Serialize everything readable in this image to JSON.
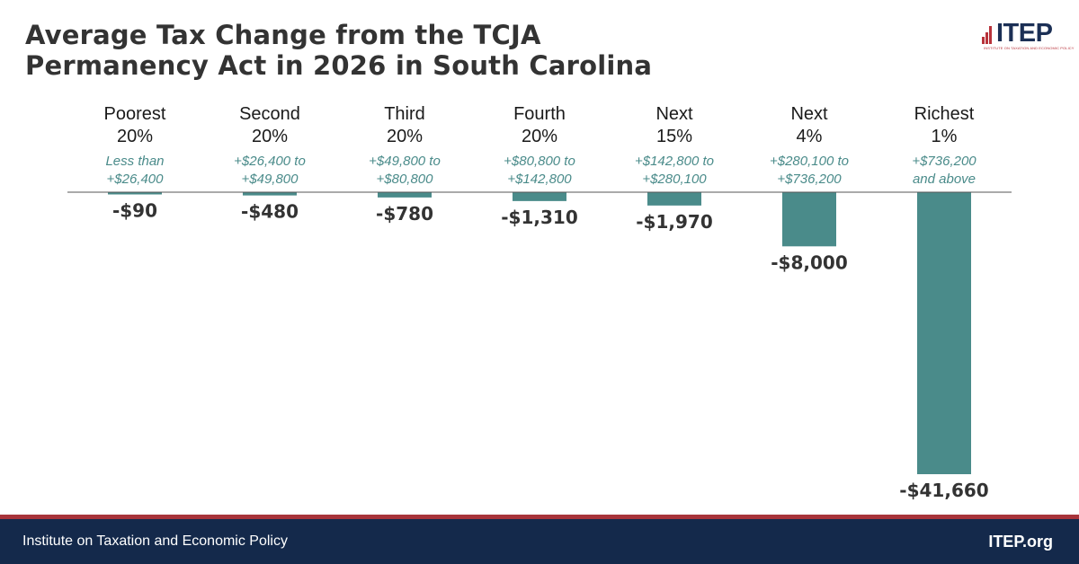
{
  "title_lines": [
    "Average Tax Change from the TCJA",
    "Permanency Act in 2026 in South Carolina"
  ],
  "logo": {
    "text": "ITEP",
    "subtext": "INSTITUTE ON TAXATION AND ECONOMIC POLICY"
  },
  "colors": {
    "bar": "#4a8b8a",
    "range_text": "#4a8b8a",
    "title": "#333333",
    "footer_bg": "#14294b",
    "footer_line": "#a8343a",
    "logo_red": "#b8323a",
    "logo_navy": "#1b2f55"
  },
  "chart_data": {
    "type": "bar",
    "categories": [
      {
        "label": [
          "Poorest",
          "20%"
        ],
        "range": [
          "Less than",
          "+$26,400"
        ]
      },
      {
        "label": [
          "Second",
          "20%"
        ],
        "range": [
          "+$26,400 to",
          "+$49,800"
        ]
      },
      {
        "label": [
          "Third",
          "20%"
        ],
        "range": [
          "+$49,800 to",
          "+$80,800"
        ]
      },
      {
        "label": [
          "Fourth",
          "20%"
        ],
        "range": [
          "+$80,800 to",
          "+$142,800"
        ]
      },
      {
        "label": [
          "Next",
          "15%"
        ],
        "range": [
          "+$142,800 to",
          "+$280,100"
        ]
      },
      {
        "label": [
          "Next",
          "4%"
        ],
        "range": [
          "+$280,100 to",
          "+$736,200"
        ]
      },
      {
        "label": [
          "Richest",
          "1%"
        ],
        "range": [
          "+$736,200",
          "and above"
        ]
      }
    ],
    "values": [
      -90,
      -480,
      -780,
      -1310,
      -1970,
      -8000,
      -41660
    ],
    "value_labels": [
      "-$90",
      "-$480",
      "-$780",
      "-$1,310",
      "-$1,970",
      "-$8,000",
      "-$41,660"
    ],
    "title": "Average Tax Change from the TCJA Permanency Act in 2026 in South Carolina",
    "xlabel": "",
    "ylabel": "",
    "grid": false,
    "legend": "none"
  },
  "footer": {
    "left_text": "Institute on Taxation and Economic Policy",
    "right_text": "ITEP.org"
  }
}
